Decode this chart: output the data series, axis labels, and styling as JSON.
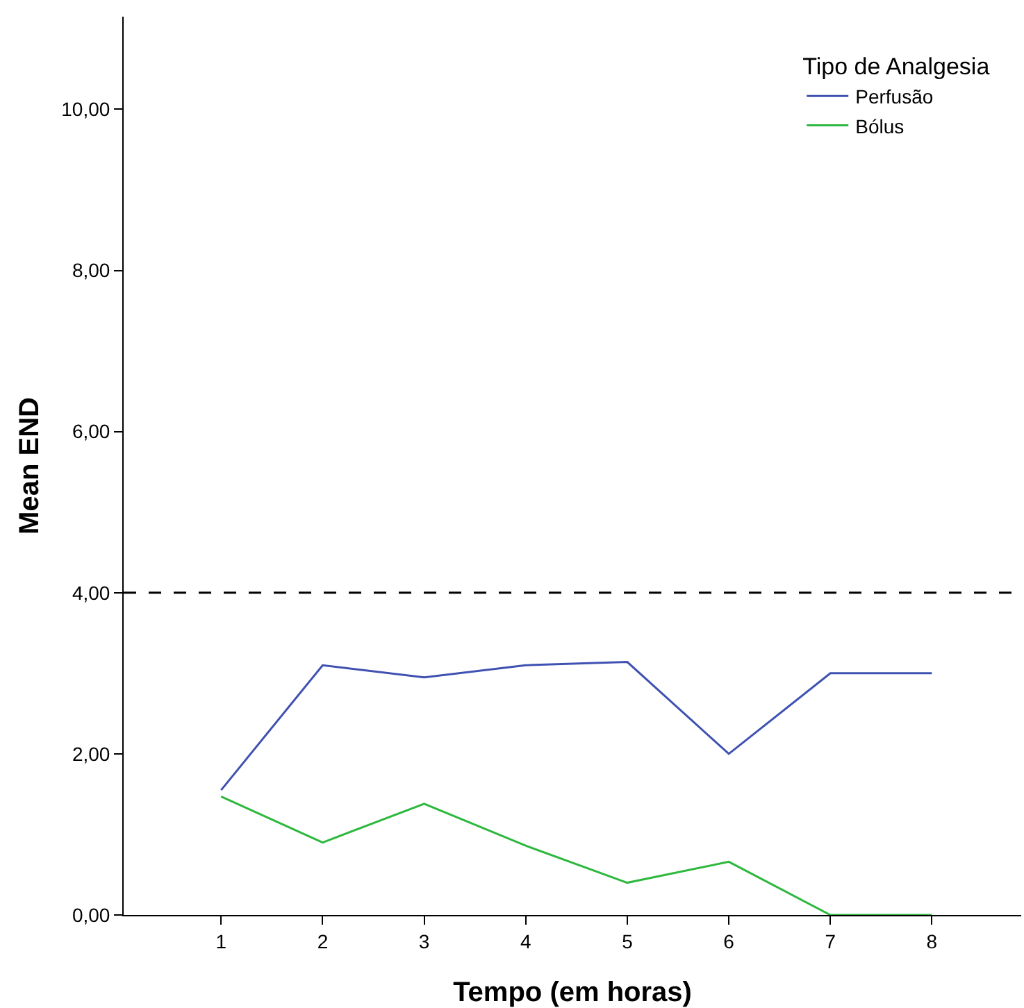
{
  "chart_data": {
    "type": "line",
    "xlabel": "Tempo (em horas)",
    "ylabel": "Mean END",
    "legend_title": "Tipo de Analgesia",
    "x": [
      1,
      2,
      3,
      4,
      5,
      6,
      7,
      8
    ],
    "series": [
      {
        "name": "Perfusão",
        "color": "#3f51b1",
        "values": [
          1.55,
          3.1,
          2.95,
          3.1,
          3.14,
          2.0,
          3.0,
          3.0
        ]
      },
      {
        "name": "Bólus",
        "color": "#2db83d",
        "values": [
          1.47,
          0.9,
          1.38,
          0.86,
          0.4,
          0.66,
          0.0,
          0.0
        ]
      }
    ],
    "xlim": [
      0.04,
      8.88
    ],
    "xticks": [
      1,
      2,
      3,
      4,
      5,
      6,
      7,
      8
    ],
    "ylim": [
      0,
      11.15
    ],
    "yticks": [
      {
        "value": 0,
        "label": "0,00"
      },
      {
        "value": 2,
        "label": "2,00"
      },
      {
        "value": 4,
        "label": "4,00"
      },
      {
        "value": 6,
        "label": "6,00"
      },
      {
        "value": 8,
        "label": "8,00"
      },
      {
        "value": 10,
        "label": "10,00"
      }
    ],
    "ref_lines": [
      {
        "axis": "y",
        "value": 4,
        "label": null,
        "color": "#000000",
        "line_style": "dashed"
      }
    ],
    "legend": "top right",
    "marker": "none",
    "line_style": "solid"
  }
}
